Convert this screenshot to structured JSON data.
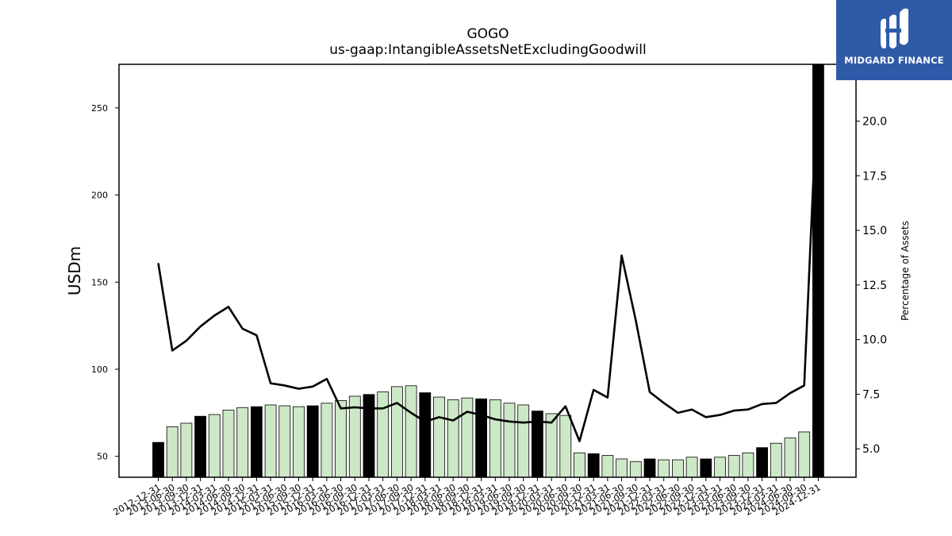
{
  "chart_data": {
    "type": "bar",
    "title": "GOGO",
    "subtitle": "us-gaap:IntangibleAssetsNetExcludingGoodwill",
    "ylabel": "USDm",
    "ylabel_right": "Percentage of Assets",
    "ylim": [
      38,
      275
    ],
    "ylim_right": [
      3.7,
      22.6
    ],
    "yticks": [
      50,
      100,
      150,
      200,
      250
    ],
    "yticks_right": [
      5.0,
      7.5,
      10.0,
      12.5,
      15.0,
      17.5,
      20.0
    ],
    "categories": [
      "2012-12-31",
      "2013-06-30",
      "2013-09-30",
      "2013-12-31",
      "2014-03-31",
      "2014-06-30",
      "2014-09-30",
      "2014-12-31",
      "2015-03-31",
      "2015-06-30",
      "2015-09-30",
      "2015-12-31",
      "2016-03-31",
      "2016-06-30",
      "2016-09-30",
      "2016-12-31",
      "2017-03-31",
      "2017-06-30",
      "2017-09-30",
      "2017-12-31",
      "2018-03-31",
      "2018-06-30",
      "2018-09-30",
      "2018-12-31",
      "2019-03-31",
      "2019-06-30",
      "2019-09-30",
      "2019-12-31",
      "2020-03-31",
      "2020-06-30",
      "2020-09-30",
      "2020-12-31",
      "2021-03-31",
      "2021-06-30",
      "2021-09-30",
      "2021-12-31",
      "2022-03-31",
      "2022-06-30",
      "2022-09-30",
      "2022-12-31",
      "2023-03-31",
      "2023-06-30",
      "2023-09-30",
      "2023-12-31",
      "2024-03-31",
      "2024-06-30",
      "2024-09-30",
      "2024-12-31"
    ],
    "series": [
      {
        "kind": "bar",
        "values": [
          58,
          67,
          69,
          73,
          74,
          76.5,
          78,
          78.5,
          79.5,
          79,
          78.5,
          79,
          80.5,
          82,
          84.5,
          85.5,
          87,
          90,
          90.5,
          86.5,
          84,
          82.5,
          83.5,
          83,
          82.5,
          80.5,
          79.5,
          76,
          74.5,
          73.5,
          52,
          51.5,
          50.5,
          48.5,
          47,
          48.5,
          48,
          48,
          49.5,
          48.5,
          49.5,
          50.5,
          52,
          55,
          57.5,
          60.5,
          64,
          275
        ],
        "year_end": [
          true,
          false,
          false,
          true,
          false,
          false,
          false,
          true,
          false,
          false,
          false,
          true,
          false,
          false,
          false,
          true,
          false,
          false,
          false,
          true,
          false,
          false,
          false,
          true,
          false,
          false,
          false,
          true,
          false,
          false,
          false,
          true,
          false,
          false,
          false,
          true,
          false,
          false,
          false,
          true,
          false,
          false,
          false,
          true,
          false,
          false,
          false,
          true
        ],
        "colors": {
          "year_end": "#000000",
          "quarter": "#cde8c6"
        }
      },
      {
        "kind": "line",
        "axis": "right",
        "values": [
          13.5,
          9.5,
          9.95,
          10.6,
          11.1,
          11.5,
          10.5,
          10.2,
          8.0,
          7.9,
          7.75,
          7.85,
          8.2,
          6.85,
          6.9,
          6.85,
          6.85,
          7.1,
          6.65,
          6.25,
          6.45,
          6.3,
          6.7,
          6.55,
          6.35,
          6.25,
          6.2,
          6.25,
          6.2,
          6.95,
          5.35,
          7.7,
          7.35,
          13.85,
          10.9,
          7.6,
          7.1,
          6.65,
          6.8,
          6.45,
          6.55,
          6.75,
          6.8,
          7.05,
          7.1,
          7.55,
          7.9,
          22.4
        ],
        "color": "#000000"
      }
    ]
  },
  "logo": {
    "text": "MIDGARD FINANCE",
    "colors": {
      "background": "#2f5aa8",
      "foreground": "#ffffff"
    }
  }
}
